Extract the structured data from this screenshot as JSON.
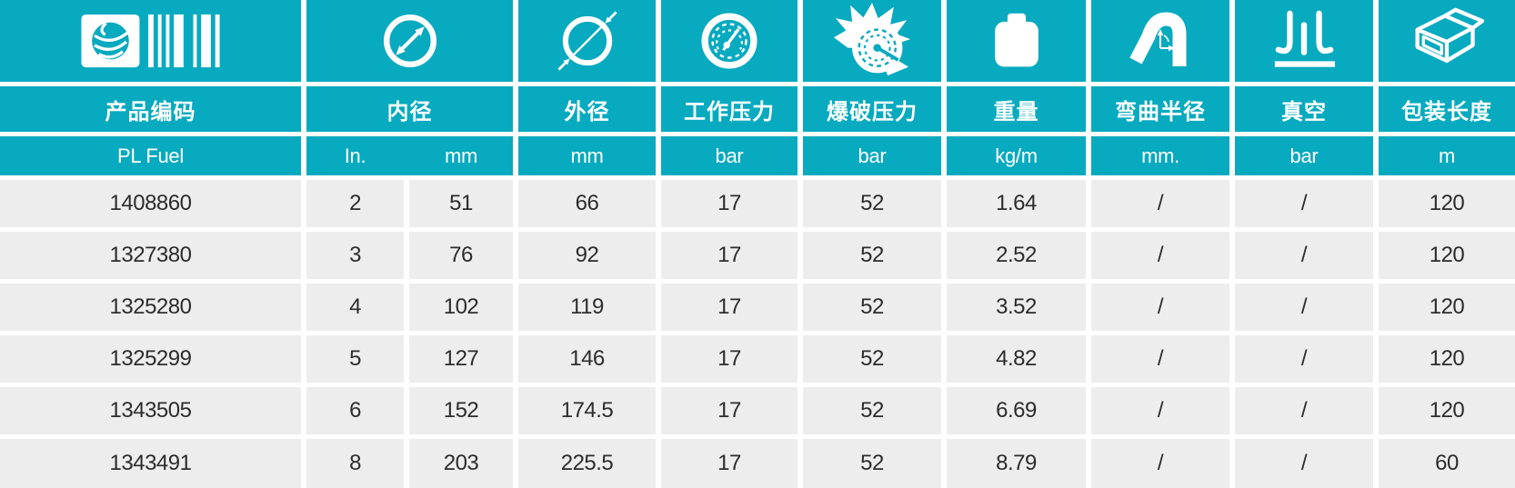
{
  "table": {
    "columns": [
      {
        "label": "产品编码",
        "icon": "barcode-icon",
        "unit": "PL Fuel"
      },
      {
        "label": "内径",
        "icon": "inner-diameter-icon",
        "units": [
          "In.",
          "mm"
        ]
      },
      {
        "label": "外径",
        "icon": "outer-diameter-icon",
        "unit": "mm"
      },
      {
        "label": "工作压力",
        "icon": "pressure-gauge-icon",
        "unit": "bar"
      },
      {
        "label": "爆破压力",
        "icon": "burst-pressure-icon",
        "unit": "bar"
      },
      {
        "label": "重量",
        "icon": "weight-icon",
        "unit": "kg/m"
      },
      {
        "label": "弯曲半径",
        "icon": "bend-radius-icon",
        "unit": "mm."
      },
      {
        "label": "真空",
        "icon": "vacuum-icon",
        "unit": "bar"
      },
      {
        "label": "包装长度",
        "icon": "packing-box-icon",
        "unit": "m"
      }
    ],
    "rows": [
      [
        "1408860",
        "2",
        "51",
        "66",
        "17",
        "52",
        "1.64",
        "/",
        "/",
        "120"
      ],
      [
        "1327380",
        "3",
        "76",
        "92",
        "17",
        "52",
        "2.52",
        "/",
        "/",
        "120"
      ],
      [
        "1325280",
        "4",
        "102",
        "119",
        "17",
        "52",
        "3.52",
        "/",
        "/",
        "120"
      ],
      [
        "1325299",
        "5",
        "127",
        "146",
        "17",
        "52",
        "4.82",
        "/",
        "/",
        "120"
      ],
      [
        "1343505",
        "6",
        "152",
        "174.5",
        "17",
        "52",
        "6.69",
        "/",
        "/",
        "120"
      ],
      [
        "1343491",
        "8",
        "203",
        "225.5",
        "17",
        "52",
        "8.79",
        "/",
        "/",
        "60"
      ]
    ]
  },
  "colors": {
    "accent_teal": "#08AABF",
    "row_background": "#EDEDED",
    "data_text": "#2C2C2C",
    "header_text": "#FFFFFF"
  }
}
